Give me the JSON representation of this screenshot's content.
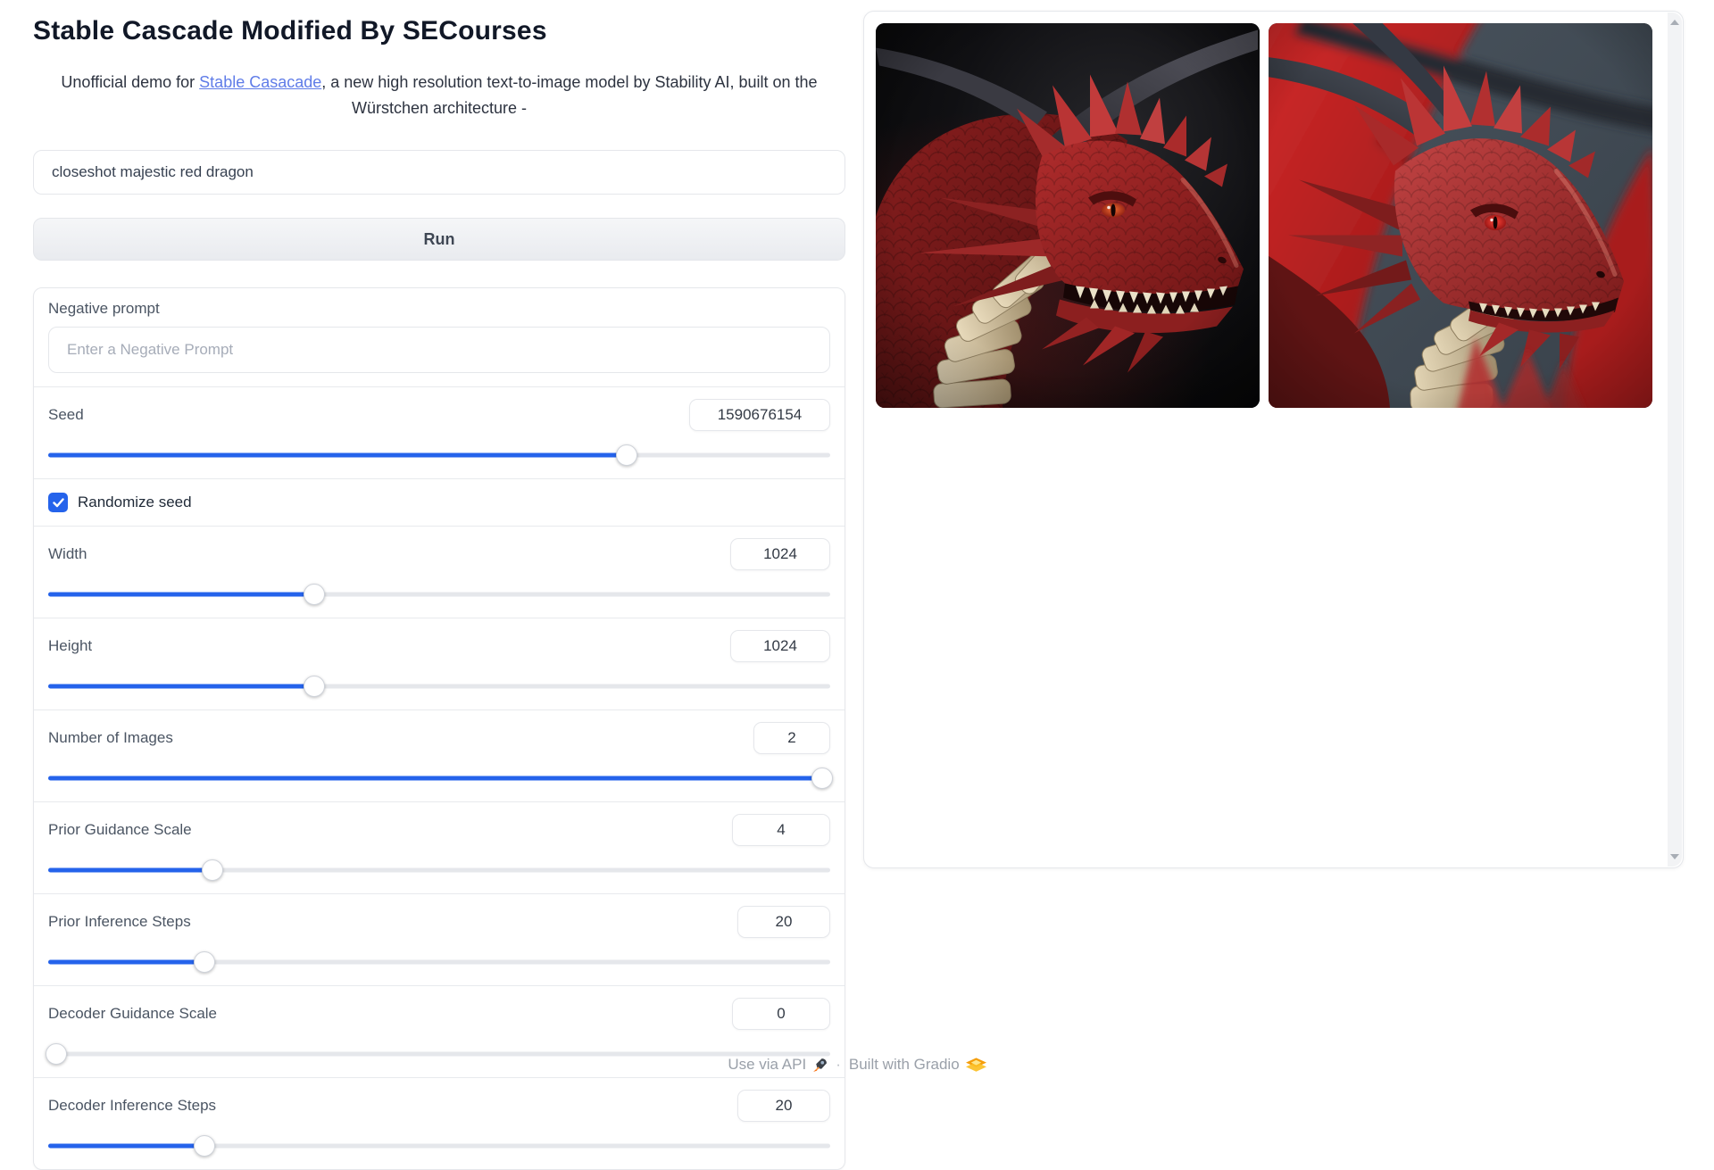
{
  "header": {
    "title": "Stable Cascade Modified By SECourses",
    "subtitle_prefix": "Unofficial demo for ",
    "subtitle_link": "Stable Casacade",
    "subtitle_suffix": ", a new high resolution text-to-image model by Stability AI, built on the Würstchen architecture -"
  },
  "prompt": {
    "value": "closeshot majestic red dragon"
  },
  "run_button": {
    "label": "Run"
  },
  "negative_prompt": {
    "label": "Negative prompt",
    "placeholder": "Enter a Negative Prompt"
  },
  "randomize_seed": {
    "label": "Randomize seed",
    "checked": true
  },
  "sliders": {
    "seed": {
      "label": "Seed",
      "value": "1590676154",
      "fill_pct": 74
    },
    "width": {
      "label": "Width",
      "value": "1024",
      "fill_pct": 34
    },
    "height": {
      "label": "Height",
      "value": "1024",
      "fill_pct": 34
    },
    "num_images": {
      "label": "Number of Images",
      "value": "2",
      "fill_pct": 99
    },
    "prior_guidance": {
      "label": "Prior Guidance Scale",
      "value": "4",
      "fill_pct": 21
    },
    "prior_steps": {
      "label": "Prior Inference Steps",
      "value": "20",
      "fill_pct": 20
    },
    "decoder_guidance": {
      "label": "Decoder Guidance Scale",
      "value": "0",
      "fill_pct": 1
    },
    "decoder_steps": {
      "label": "Decoder Inference Steps",
      "value": "20",
      "fill_pct": 20
    }
  },
  "gallery": {
    "images": [
      {
        "name": "red-dragon-dark-background",
        "alt": "Close-up of a majestic red dragon head on a dark background"
      },
      {
        "name": "red-dragon-red-background",
        "alt": "Close-up of a majestic red dragon head with red wing background"
      }
    ]
  },
  "footer": {
    "use_via_api": "Use via API",
    "separator": "·",
    "built_with": "Built with Gradio"
  },
  "colors": {
    "accent_blue": "#2563eb",
    "link_blue": "#5f7ce8",
    "track_gray": "#e5e7eb"
  }
}
